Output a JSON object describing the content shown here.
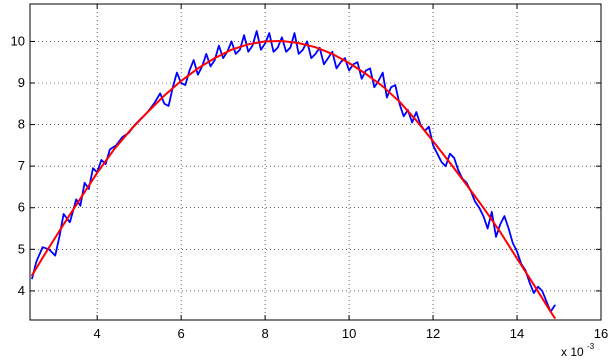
{
  "chart_data": {
    "type": "line",
    "title": "",
    "xlabel": "",
    "ylabel": "",
    "x_scale_note": "x 10",
    "x_scale_exponent": "-3",
    "xlim": [
      2.4,
      16
    ],
    "ylim": [
      3.3,
      10.9
    ],
    "x_ticks": [
      4,
      6,
      8,
      10,
      12,
      14,
      16
    ],
    "x_tick_labels": [
      "4",
      "6",
      "8",
      "10",
      "12",
      "14",
      "16"
    ],
    "y_ticks": [
      4,
      5,
      6,
      7,
      8,
      9,
      10
    ],
    "y_tick_labels": [
      "4",
      "5",
      "6",
      "7",
      "8",
      "9",
      "10"
    ],
    "grid": true,
    "legend": "none",
    "colors": {
      "measured": "#0000ff",
      "fit": "#ff0000",
      "axis": "#000000",
      "grid": "#000000"
    },
    "series": [
      {
        "key": "fit",
        "color": "#ff0000",
        "x": [
          2.45,
          2.8,
          3.2,
          3.6,
          4.0,
          4.4,
          4.8,
          5.2,
          5.6,
          6.0,
          6.4,
          6.8,
          7.2,
          7.6,
          8.0,
          8.4,
          8.8,
          9.2,
          9.6,
          10.0,
          10.4,
          10.8,
          11.2,
          11.6,
          12.0,
          12.4,
          12.8,
          13.2,
          13.6,
          14.0,
          14.4,
          14.8,
          14.9
        ],
        "y": [
          4.38,
          4.96,
          5.6,
          6.22,
          6.84,
          7.4,
          7.88,
          8.3,
          8.7,
          9.05,
          9.35,
          9.6,
          9.8,
          9.93,
          10.0,
          10.01,
          9.96,
          9.86,
          9.7,
          9.48,
          9.22,
          8.92,
          8.55,
          8.1,
          7.6,
          7.08,
          6.55,
          6.0,
          5.42,
          4.78,
          4.15,
          3.5,
          3.35
        ]
      },
      {
        "key": "measured",
        "color": "#0000ff",
        "x": [
          2.45,
          2.55,
          2.7,
          2.85,
          3.0,
          3.1,
          3.2,
          3.35,
          3.5,
          3.6,
          3.7,
          3.8,
          3.9,
          4.0,
          4.1,
          4.2,
          4.3,
          4.45,
          4.6,
          4.75,
          4.9,
          5.05,
          5.2,
          5.35,
          5.5,
          5.6,
          5.7,
          5.8,
          5.9,
          6.0,
          6.1,
          6.2,
          6.3,
          6.4,
          6.5,
          6.6,
          6.7,
          6.8,
          6.9,
          7.0,
          7.1,
          7.2,
          7.3,
          7.4,
          7.5,
          7.6,
          7.7,
          7.8,
          7.9,
          8.0,
          8.1,
          8.2,
          8.3,
          8.4,
          8.5,
          8.6,
          8.7,
          8.8,
          8.9,
          9.0,
          9.1,
          9.2,
          9.3,
          9.4,
          9.5,
          9.6,
          9.7,
          9.8,
          9.9,
          10.0,
          10.1,
          10.2,
          10.3,
          10.4,
          10.5,
          10.6,
          10.7,
          10.8,
          10.9,
          11.0,
          11.1,
          11.2,
          11.3,
          11.4,
          11.5,
          11.6,
          11.7,
          11.8,
          11.9,
          12.0,
          12.1,
          12.2,
          12.3,
          12.4,
          12.5,
          12.6,
          12.7,
          12.8,
          12.9,
          13.0,
          13.1,
          13.2,
          13.3,
          13.4,
          13.5,
          13.6,
          13.7,
          13.8,
          13.9,
          14.0,
          14.1,
          14.2,
          14.3,
          14.4,
          14.5,
          14.6,
          14.7,
          14.8,
          14.9
        ],
        "y": [
          4.3,
          4.7,
          5.05,
          5.0,
          4.85,
          5.3,
          5.85,
          5.65,
          6.2,
          6.05,
          6.6,
          6.45,
          6.95,
          6.85,
          7.15,
          7.05,
          7.4,
          7.5,
          7.7,
          7.8,
          8.0,
          8.15,
          8.3,
          8.5,
          8.75,
          8.5,
          8.45,
          8.9,
          9.25,
          9.0,
          8.95,
          9.3,
          9.55,
          9.2,
          9.4,
          9.7,
          9.4,
          9.55,
          9.9,
          9.6,
          9.75,
          10.0,
          9.7,
          9.8,
          10.15,
          9.75,
          9.9,
          10.25,
          9.8,
          9.95,
          10.2,
          9.75,
          9.85,
          10.1,
          9.75,
          9.85,
          10.2,
          9.7,
          9.8,
          10.0,
          9.6,
          9.7,
          9.85,
          9.45,
          9.6,
          9.75,
          9.35,
          9.5,
          9.6,
          9.3,
          9.45,
          9.5,
          9.1,
          9.3,
          9.35,
          8.9,
          9.05,
          9.25,
          8.65,
          8.9,
          8.95,
          8.5,
          8.2,
          8.35,
          8.05,
          8.3,
          8.0,
          7.85,
          7.95,
          7.5,
          7.3,
          7.1,
          7.0,
          7.3,
          7.2,
          6.9,
          6.7,
          6.6,
          6.4,
          6.15,
          6.0,
          5.8,
          5.5,
          5.9,
          5.3,
          5.6,
          5.8,
          5.5,
          5.15,
          4.95,
          4.65,
          4.5,
          4.2,
          3.95,
          4.1,
          4.0,
          3.75,
          3.5,
          3.65
        ]
      }
    ]
  }
}
